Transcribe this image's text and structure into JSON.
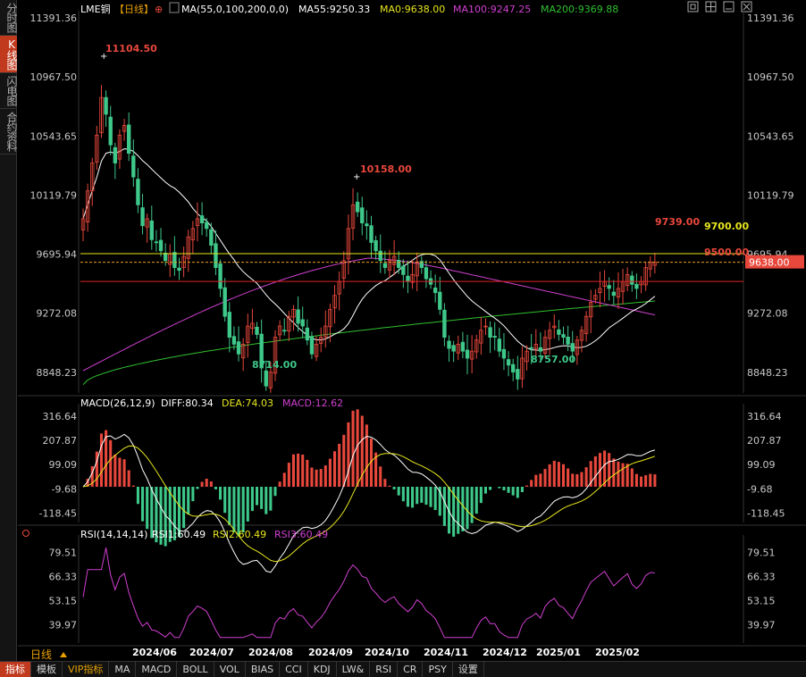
{
  "left_tabs": [
    "分时图",
    "K线图",
    "闪电图",
    "合约资料"
  ],
  "top_icons": [
    "fullscreen-icon",
    "grid-icon",
    "minimize-icon",
    "close-icon"
  ],
  "header": {
    "symbol": "LME铜",
    "period": "【日线】",
    "ma_params": "MA(55,0,100,200,0,0)",
    "ma55": "MA55:9250.33",
    "ma0": "MA0:9638.00",
    "ma100": "MA100:9247.25",
    "ma200": "MA200:9369.88"
  },
  "macd_header": {
    "params": "MACD(26,12,9)",
    "diff": "DIFF:80.34",
    "dea": "DEA:74.03",
    "macd": "MACD:12.62"
  },
  "rsi_header": {
    "params": "RSI(14,14,14)",
    "rsi1": "RSI1:60.49",
    "rsi2": "RSI2:60.49",
    "rsi3": "RSI3:60.49"
  },
  "price_ticks_left": [
    "11391.36",
    "10967.50",
    "10543.65",
    "10119.79",
    "9695.94",
    "9272.08",
    "8848.23"
  ],
  "price_ticks_right": [
    "11391.36",
    "10967.50",
    "10543.65",
    "10119.79",
    "9695.94",
    "9272.08",
    "8848.23"
  ],
  "macd_ticks": [
    "316.64",
    "207.87",
    "99.09",
    "-9.68",
    "-118.45"
  ],
  "rsi_ticks": [
    "79.51",
    "66.33",
    "53.15",
    "39.97"
  ],
  "date_labels": [
    "2024/06",
    "2024/07",
    "2024/08",
    "2024/09",
    "2024/10",
    "2024/11",
    "2024/12",
    "2025/01",
    "2025/02"
  ],
  "annotations": {
    "high": "11104.50",
    "high2": "10158.00",
    "recent_high": "9739.00",
    "low1": "8714.00",
    "low2": "8757.00",
    "line_9700": "9700.00",
    "line_9500": "9500.00",
    "current_price": "9638.00"
  },
  "period_label": "日线",
  "bottom_tabs": [
    "指标",
    "模板",
    "VIP指标",
    "MA",
    "MACD",
    "BOLL",
    "VOL",
    "BIAS",
    "CCI",
    "KDJ",
    "LW&",
    "RSI",
    "CR",
    "PSY",
    "设置"
  ],
  "colors": {
    "up": "#e8483c",
    "down": "#3ec88a",
    "ma0": "#ffffff",
    "ma100": "#d040d0",
    "ma200": "#30c030",
    "yellow": "#e6e61e",
    "red_line": "#e02020",
    "dea": "#e6e61e",
    "diff": "#ffffff"
  },
  "chart_data": [
    {
      "type": "candlestick",
      "title": "LME铜【日线】",
      "x_range": [
        "2024/05",
        "2025/02"
      ],
      "ylim": [
        8700,
        11391.36
      ],
      "key_points": [
        {
          "label": "11104.50",
          "value": 11104.5,
          "date": "2024/05"
        },
        {
          "label": "8714.00",
          "value": 8714.0,
          "date": "2024/08"
        },
        {
          "label": "10158.00",
          "value": 10158.0,
          "date": "2024/09"
        },
        {
          "label": "8757.00",
          "value": 8757.0,
          "date": "2024/12"
        },
        {
          "label": "9739.00",
          "value": 9739.0,
          "date": "2025/02"
        }
      ],
      "closes": [
        9950,
        10150,
        10350,
        10550,
        10820,
        10700,
        10480,
        10350,
        10550,
        10620,
        10420,
        10250,
        10050,
        9900,
        9950,
        9800,
        9780,
        9720,
        9650,
        9700,
        9600,
        9580,
        9680,
        9820,
        9880,
        9950,
        9920,
        9880,
        9760,
        9600,
        9450,
        9250,
        9100,
        9050,
        8980,
        9050,
        9180,
        9200,
        9120,
        8880,
        8750,
        8850,
        9100,
        9180,
        9150,
        9250,
        9300,
        9200,
        9180,
        9080,
        8980,
        9050,
        9100,
        9180,
        9300,
        9400,
        9500,
        9650,
        9880,
        10050,
        10000,
        9920,
        9900,
        9780,
        9720,
        9650,
        9600,
        9650,
        9680,
        9600,
        9550,
        9500,
        9550,
        9640,
        9600,
        9520,
        9480,
        9420,
        9300,
        9100,
        9020,
        9000,
        9050,
        9000,
        8950,
        9000,
        9080,
        9150,
        9180,
        9100,
        9100,
        9000,
        8950,
        8900,
        8850,
        8800,
        8950,
        9000,
        9020,
        9050,
        9000,
        9100,
        9150,
        9180,
        9120,
        9100,
        9050,
        9000,
        9080,
        9150,
        9250,
        9350,
        9400,
        9450,
        9500,
        9450,
        9400,
        9450,
        9500,
        9550,
        9480,
        9450,
        9500,
        9600,
        9640,
        9638
      ],
      "series": [
        {
          "name": "MA0",
          "value": 9638.0
        },
        {
          "name": "MA55",
          "value": 9250.33
        },
        {
          "name": "MA100",
          "value": 9247.25
        },
        {
          "name": "MA200",
          "value": 9369.88
        }
      ],
      "horizontal_lines": [
        9700.0,
        9500.0
      ]
    },
    {
      "type": "bar",
      "title": "MACD(26,12,9)",
      "ylim": [
        -160,
        340
      ],
      "series": [
        {
          "name": "DIFF",
          "value": 80.34
        },
        {
          "name": "DEA",
          "value": 74.03
        },
        {
          "name": "MACD",
          "value": 12.62
        }
      ]
    },
    {
      "type": "line",
      "title": "RSI(14,14,14)",
      "ylim": [
        30,
        85
      ],
      "series": [
        {
          "name": "RSI1",
          "value": 60.49
        },
        {
          "name": "RSI2",
          "value": 60.49
        },
        {
          "name": "RSI3",
          "value": 60.49
        }
      ]
    }
  ]
}
